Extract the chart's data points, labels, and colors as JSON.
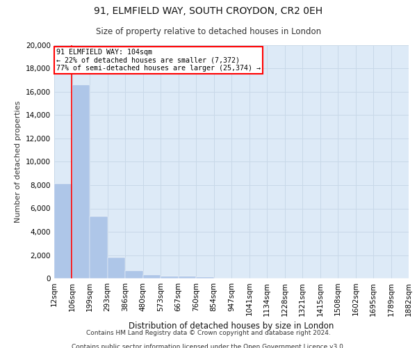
{
  "title_line1": "91, ELMFIELD WAY, SOUTH CROYDON, CR2 0EH",
  "title_line2": "Size of property relative to detached houses in London",
  "xlabel": "Distribution of detached houses by size in London",
  "ylabel": "Number of detached properties",
  "annotation_title": "91 ELMFIELD WAY: 104sqm",
  "annotation_line2": "← 22% of detached houses are smaller (7,372)",
  "annotation_line3": "77% of semi-detached houses are larger (25,374) →",
  "property_size_sqm": 104,
  "footer_line1": "Contains HM Land Registry data © Crown copyright and database right 2024.",
  "footer_line2": "Contains public sector information licensed under the Open Government Licence v3.0.",
  "bin_labels": [
    "12sqm",
    "106sqm",
    "199sqm",
    "293sqm",
    "386sqm",
    "480sqm",
    "573sqm",
    "667sqm",
    "760sqm",
    "854sqm",
    "947sqm",
    "1041sqm",
    "1134sqm",
    "1228sqm",
    "1321sqm",
    "1415sqm",
    "1508sqm",
    "1602sqm",
    "1695sqm",
    "1789sqm",
    "1882sqm"
  ],
  "bin_edges": [
    12,
    106,
    199,
    293,
    386,
    480,
    573,
    667,
    760,
    854,
    947,
    1041,
    1134,
    1228,
    1321,
    1415,
    1508,
    1602,
    1695,
    1789,
    1882
  ],
  "bar_values": [
    8100,
    16600,
    5300,
    1800,
    650,
    320,
    190,
    150,
    120,
    0,
    0,
    0,
    0,
    0,
    0,
    0,
    0,
    0,
    0,
    0
  ],
  "bar_color": "#aec6e8",
  "grid_color": "#c8d8e8",
  "background_color": "#ddeaf7",
  "red_line_x": 104,
  "annotation_box_color": "white",
  "annotation_box_edge_color": "red",
  "ylim": [
    0,
    20000
  ],
  "yticks": [
    0,
    2000,
    4000,
    6000,
    8000,
    10000,
    12000,
    14000,
    16000,
    18000,
    20000
  ]
}
